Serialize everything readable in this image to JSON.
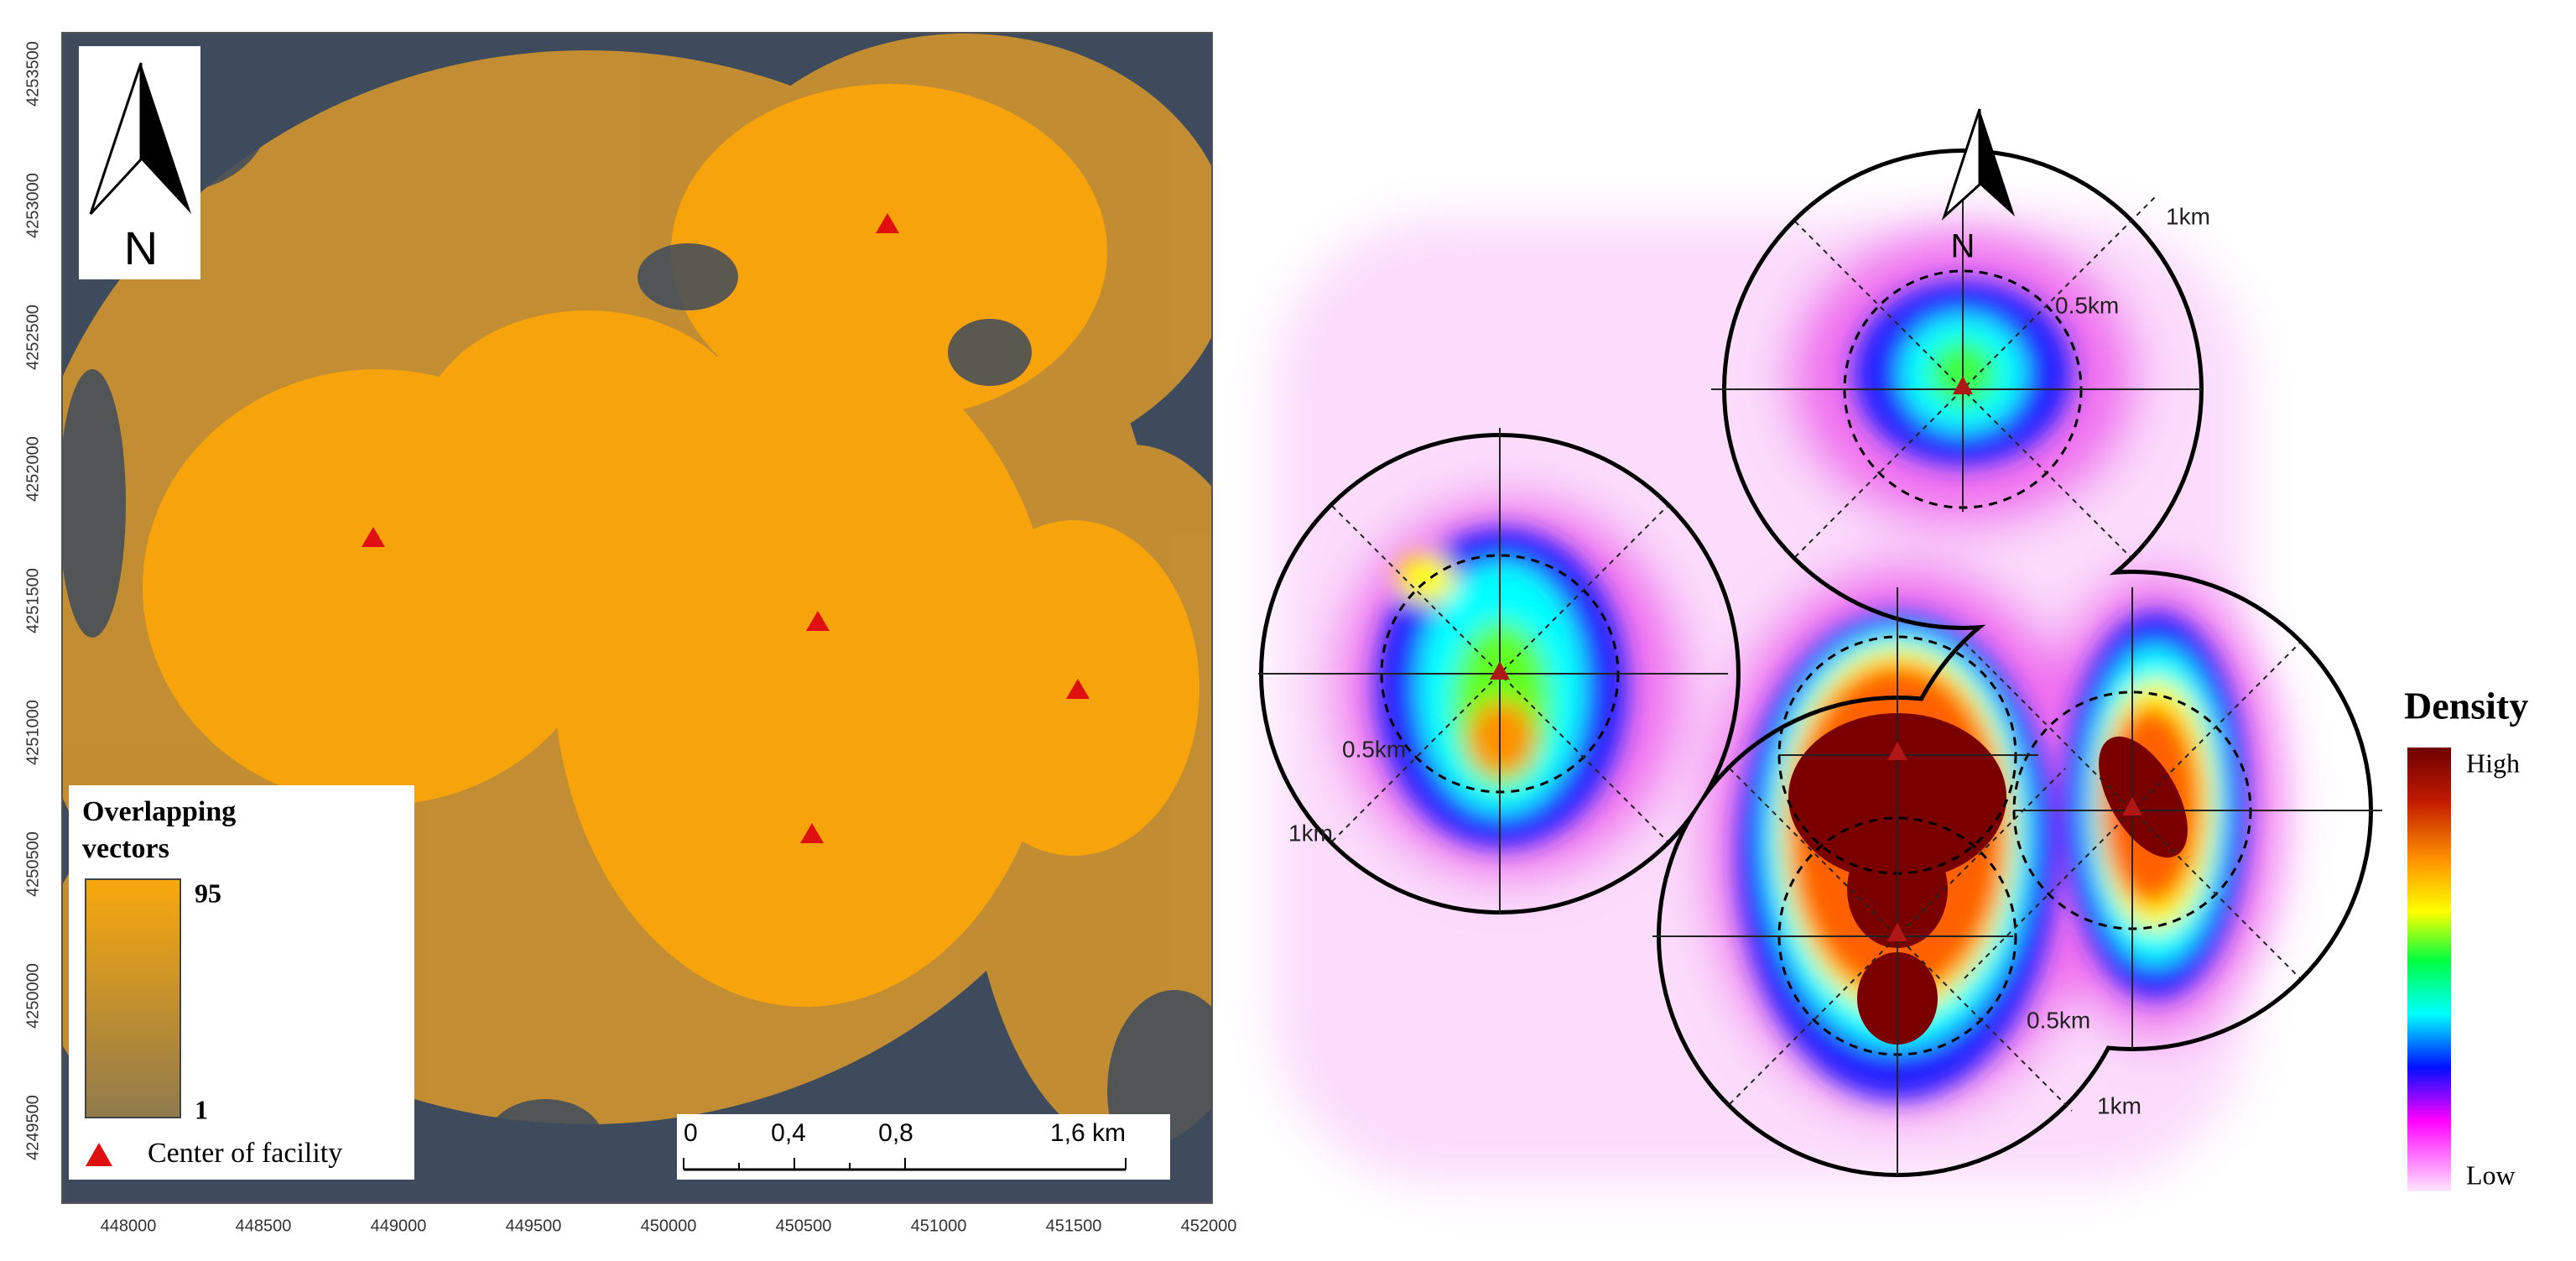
{
  "left_map": {
    "north": "N",
    "y_labels": [
      "4253500",
      "4253000",
      "4252500",
      "4252000",
      "4251500",
      "4251000",
      "4250500",
      "4250000",
      "4249500"
    ],
    "x_labels": [
      "448000",
      "448500",
      "449000",
      "449500",
      "450000",
      "450500",
      "451000",
      "451500",
      "452000"
    ],
    "legend": {
      "title_line1": "Overlapping",
      "title_line2": "vectors",
      "max": "95",
      "min": "1",
      "facility": "Center of facility"
    },
    "scale_bar": [
      "0",
      "0,4",
      "0,8",
      "1,6 km"
    ]
  },
  "right_map": {
    "north": "N",
    "ring_labels": [
      "1km",
      "0.5km",
      "0.5km",
      "1km",
      "0.5km",
      "1km"
    ],
    "legend": {
      "title": "Density",
      "high": "High",
      "low": "Low"
    }
  }
}
